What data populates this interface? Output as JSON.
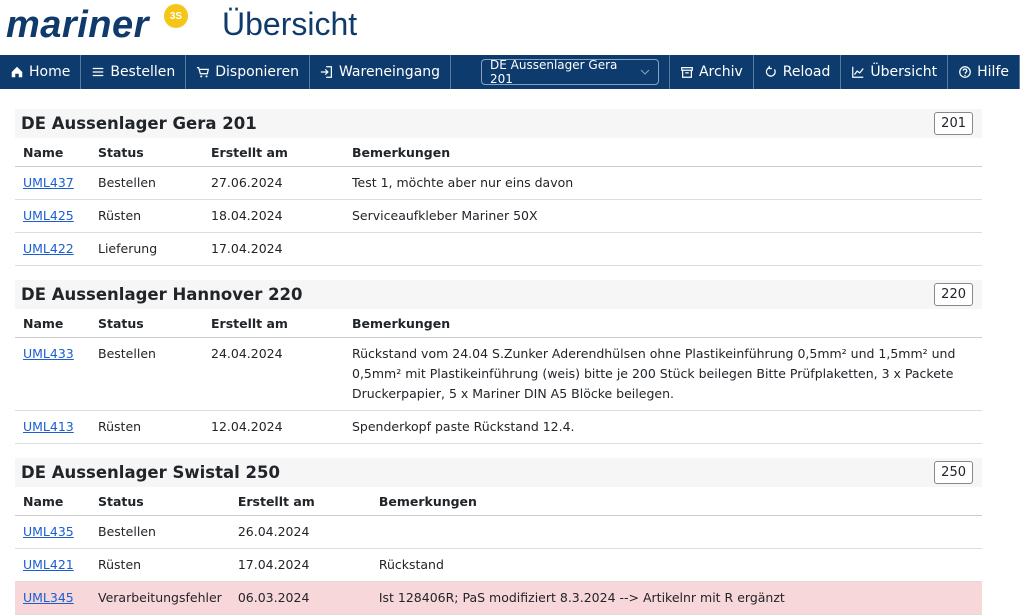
{
  "header": {
    "logo": "mariner",
    "logo_badge": "3S",
    "title": "Übersicht"
  },
  "nav": {
    "left": [
      "Home",
      "Bestellen",
      "Disponieren",
      "Wareneingang"
    ],
    "location": "DE Aussenlager Gera 201",
    "right": [
      "Archiv",
      "Reload",
      "Übersicht",
      "Hilfe"
    ]
  },
  "sections": [
    {
      "title": "DE Aussenlager Gera 201",
      "badge": "201",
      "columns": [
        "Name",
        "Status",
        "Erstellt am",
        "Bemerkungen"
      ],
      "rows": [
        {
          "cells": [
            "UML437",
            "Bestellen",
            "27.06.2024",
            "Test 1, möchte aber nur eins davon"
          ]
        },
        {
          "cells": [
            "UML425",
            "Rüsten",
            "18.04.2024",
            "Serviceaufkleber Mariner 50X"
          ]
        },
        {
          "cells": [
            "UML422",
            "Lieferung",
            "17.04.2024",
            ""
          ]
        }
      ]
    },
    {
      "title": "DE Aussenlager Hannover 220",
      "badge": "220",
      "columns": [
        "Name",
        "Status",
        "Erstellt am",
        "Bemerkungen"
      ],
      "rows": [
        {
          "cells": [
            "UML433",
            "Bestellen",
            "24.04.2024",
            "Rückstand vom 24.04 S.Zunker Aderendhülsen ohne Plastikeinführung 0,5mm² und 1,5mm² und 0,5mm² mit Plastikeinführung (weis) bitte je 200 Stück beilegen Bitte Prüfplaketten, 3 x Packete Druckerpapier, 5 x Mariner DIN A5 Blöcke beilegen."
          ]
        },
        {
          "cells": [
            "UML413",
            "Rüsten",
            "12.04.2024",
            "Spenderkopf paste Rückstand 12.4."
          ]
        }
      ]
    },
    {
      "title": "DE Aussenlager Swistal 250",
      "badge": "250",
      "columns": [
        "Name",
        "Status",
        "Erstellt am",
        "Bemerkungen"
      ],
      "rows": [
        {
          "cells": [
            "UML435",
            "Bestellen",
            "26.04.2024",
            ""
          ]
        },
        {
          "cells": [
            "UML421",
            "Rüsten",
            "17.04.2024",
            "Rückstand"
          ]
        },
        {
          "cells": [
            "UML345",
            "Verarbeitungsfehler",
            "06.03.2024",
            "Ist 128406R; PaS modifiziert 8.3.2024 --> Artikelnr mit R ergänzt"
          ],
          "highlight": true
        }
      ]
    }
  ]
}
